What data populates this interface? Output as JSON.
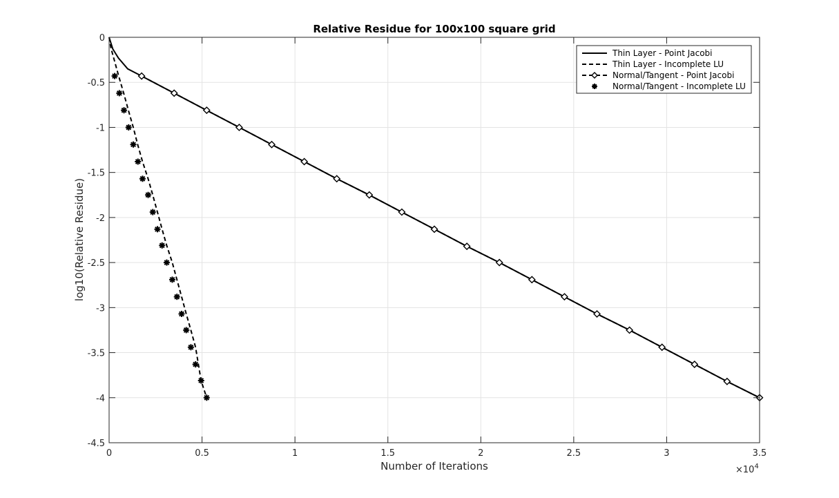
{
  "chart_data": {
    "type": "line",
    "title": "Relative Residue for 100x100 square grid",
    "xlabel": "Number of Iterations",
    "ylabel": "log10(Relative Residue)",
    "x_multiplier_base": "×10",
    "x_multiplier_exponent": "4",
    "xlim": [
      0,
      3.5
    ],
    "ylim": [
      -4.5,
      0
    ],
    "grid": true,
    "legend_position": "top-right",
    "xticks": [
      0,
      0.5,
      1,
      1.5,
      2,
      2.5,
      3,
      3.5
    ],
    "xtick_labels": [
      "0",
      "0.5",
      "1",
      "1.5",
      "2",
      "2.5",
      "3",
      "3.5"
    ],
    "yticks": [
      0,
      -0.5,
      -1,
      -1.5,
      -2,
      -2.5,
      -3,
      -3.5,
      -4,
      -4.5
    ],
    "ytick_labels": [
      "0",
      "-0.5",
      "-1",
      "-1.5",
      "-2",
      "-2.5",
      "-3",
      "-3.5",
      "-4",
      "-4.5"
    ],
    "series": [
      {
        "name": "Thin Layer - Point Jacobi",
        "line": "solid",
        "marker": "none",
        "x": [
          0,
          0.02,
          0.05,
          0.1,
          0.175,
          0.35,
          0.525,
          0.7,
          0.875,
          1.05,
          1.225,
          1.4,
          1.575,
          1.75,
          1.925,
          2.1,
          2.275,
          2.45,
          2.625,
          2.8,
          2.975,
          3.15,
          3.325,
          3.5
        ],
        "y": [
          0,
          -0.13,
          -0.23,
          -0.35,
          -0.43,
          -0.62,
          -0.81,
          -1.0,
          -1.19,
          -1.38,
          -1.57,
          -1.75,
          -1.94,
          -2.13,
          -2.32,
          -2.5,
          -2.69,
          -2.88,
          -3.07,
          -3.25,
          -3.44,
          -3.63,
          -3.82,
          -4.0
        ]
      },
      {
        "name": "Thin Layer - Incomplete LU",
        "line": "dashed",
        "marker": "none",
        "x": [
          0,
          0.01,
          0.03,
          0.05,
          0.08,
          0.105,
          0.13,
          0.155,
          0.18,
          0.21,
          0.235,
          0.26,
          0.285,
          0.31,
          0.34,
          0.365,
          0.39,
          0.415,
          0.44,
          0.465,
          0.495,
          0.525
        ],
        "y": [
          0,
          -0.12,
          -0.27,
          -0.42,
          -0.63,
          -0.82,
          -1.0,
          -1.2,
          -1.38,
          -1.57,
          -1.75,
          -1.94,
          -2.13,
          -2.31,
          -2.5,
          -2.69,
          -2.88,
          -3.07,
          -3.25,
          -3.44,
          -3.81,
          -4.0
        ]
      },
      {
        "name": "Normal/Tangent - Point Jacobi",
        "line": "dashed",
        "marker": "diamond",
        "x": [
          0.175,
          0.35,
          0.525,
          0.7,
          0.875,
          1.05,
          1.225,
          1.4,
          1.575,
          1.75,
          1.925,
          2.1,
          2.275,
          2.45,
          2.625,
          2.8,
          2.975,
          3.15,
          3.325,
          3.5
        ],
        "y": [
          -0.43,
          -0.62,
          -0.81,
          -1.0,
          -1.19,
          -1.38,
          -1.57,
          -1.75,
          -1.94,
          -2.13,
          -2.32,
          -2.5,
          -2.69,
          -2.88,
          -3.07,
          -3.25,
          -3.44,
          -3.63,
          -3.82,
          -4.0
        ]
      },
      {
        "name": "Normal/Tangent - Incomplete LU",
        "line": "none",
        "marker": "asterisk",
        "x": [
          0.03,
          0.055,
          0.08,
          0.105,
          0.13,
          0.155,
          0.18,
          0.21,
          0.235,
          0.26,
          0.285,
          0.31,
          0.34,
          0.365,
          0.39,
          0.415,
          0.44,
          0.465,
          0.495,
          0.525
        ],
        "y": [
          -0.43,
          -0.62,
          -0.81,
          -1.0,
          -1.19,
          -1.38,
          -1.57,
          -1.75,
          -1.94,
          -2.13,
          -2.31,
          -2.5,
          -2.69,
          -2.88,
          -3.07,
          -3.25,
          -3.44,
          -3.63,
          -3.81,
          -4.0
        ]
      }
    ]
  }
}
